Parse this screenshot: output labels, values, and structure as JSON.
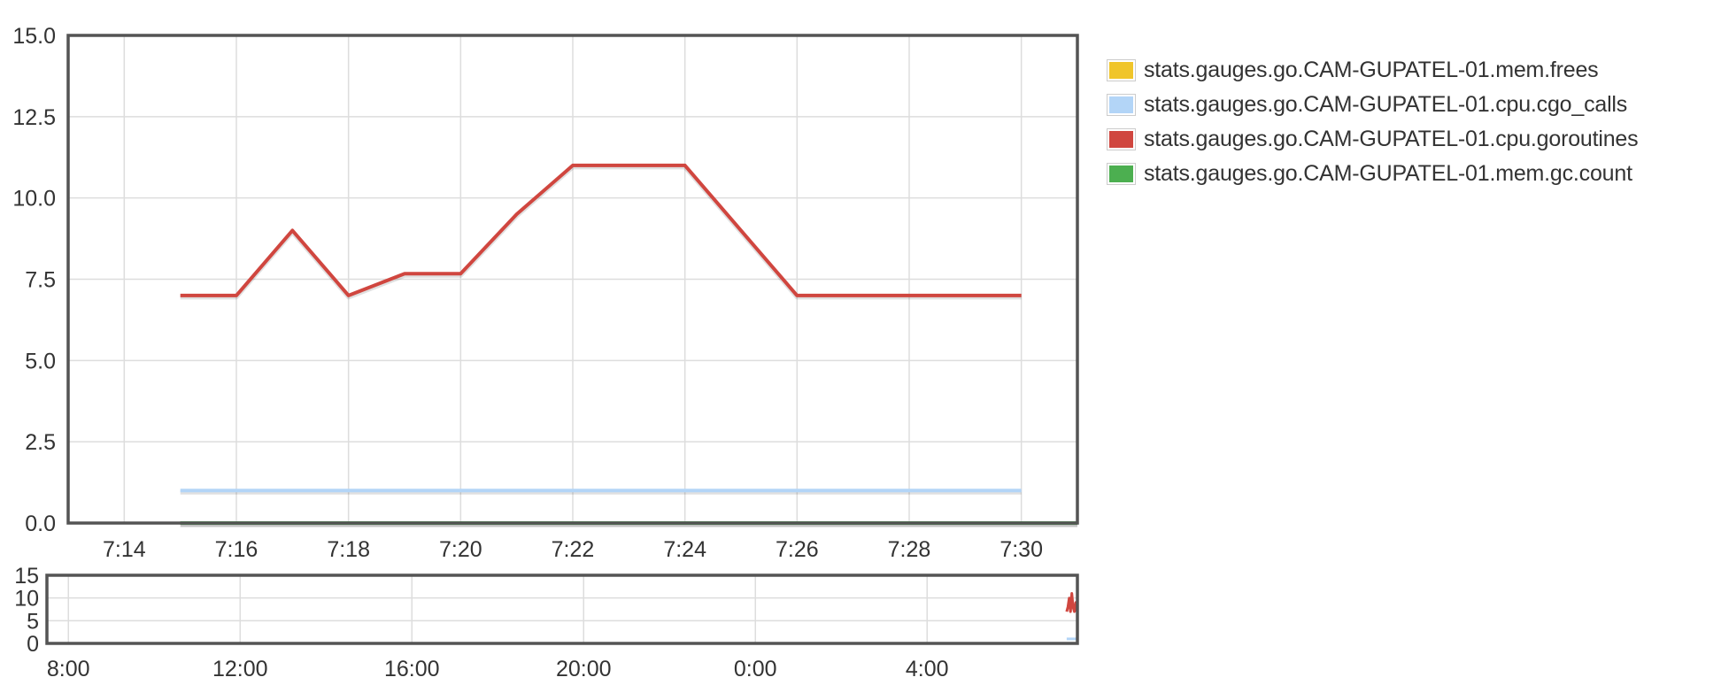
{
  "chart_data": [
    {
      "type": "line",
      "title": "",
      "xlabel": "",
      "ylabel": "",
      "x_ticks": [
        "7:14",
        "7:16",
        "7:18",
        "7:20",
        "7:22",
        "7:24",
        "7:26",
        "7:28",
        "7:30"
      ],
      "x_tick_minutes": [
        14,
        16,
        18,
        20,
        22,
        24,
        26,
        28,
        30
      ],
      "xlim": [
        13.0,
        31.0
      ],
      "ylim": [
        0,
        15
      ],
      "y_ticks": [
        "0.0",
        "2.5",
        "5.0",
        "7.5",
        "10.0",
        "12.5",
        "15.0"
      ],
      "y_tick_values": [
        0,
        2.5,
        5,
        7.5,
        10,
        12.5,
        15
      ],
      "grid": true,
      "legend_position": "right",
      "series": [
        {
          "name": "stats.gauges.go.CAM-GUPATEL-01.mem.frees",
          "color": "#f0c52a",
          "x": [
            15,
            16,
            17,
            18,
            19,
            20,
            21,
            22,
            23,
            24,
            25,
            26,
            27,
            28,
            29,
            30,
            31
          ],
          "values": [
            0,
            0,
            0,
            0,
            0,
            0,
            0,
            0,
            0,
            0,
            0,
            0,
            0,
            0,
            0,
            0,
            0
          ]
        },
        {
          "name": "stats.gauges.go.CAM-GUPATEL-01.cpu.cgo_calls",
          "color": "#b3d5f7",
          "x": [
            15,
            16,
            17,
            18,
            19,
            20,
            21,
            22,
            23,
            24,
            25,
            26,
            27,
            28,
            29,
            30
          ],
          "values": [
            1,
            1,
            1,
            1,
            1,
            1,
            1,
            1,
            1,
            1,
            1,
            1,
            1,
            1,
            1,
            1
          ]
        },
        {
          "name": "stats.gauges.go.CAM-GUPATEL-01.cpu.goroutines",
          "color": "#d0463f",
          "x": [
            15,
            16,
            17,
            18,
            19,
            20,
            21,
            22,
            23,
            24,
            25,
            26,
            27,
            28,
            29,
            30
          ],
          "values": [
            7,
            7,
            9,
            7,
            7.67,
            7.67,
            9.5,
            11,
            11,
            11,
            9,
            7,
            7,
            7,
            7,
            7
          ]
        },
        {
          "name": "stats.gauges.go.CAM-GUPATEL-01.mem.gc.count",
          "color": "#4caf50",
          "x": [
            15,
            16,
            17,
            18,
            19,
            20,
            21,
            22,
            23,
            24,
            25,
            26,
            27,
            28,
            29,
            30,
            31
          ],
          "values": [
            0,
            0,
            0,
            0,
            0,
            0,
            0,
            0,
            0,
            0,
            0,
            0,
            0,
            0,
            0,
            0,
            0
          ]
        }
      ]
    },
    {
      "type": "line",
      "title": "",
      "xlabel": "",
      "ylabel": "",
      "x_ticks": [
        "8:00",
        "12:00",
        "16:00",
        "20:00",
        "0:00",
        "4:00"
      ],
      "x_tick_hours": [
        8,
        12,
        16,
        20,
        24,
        28
      ],
      "xlim": [
        7.5,
        31.5
      ],
      "ylim": [
        0,
        15
      ],
      "y_ticks": [
        "0",
        "5",
        "10",
        "15"
      ],
      "y_tick_values": [
        0,
        5,
        10,
        15
      ],
      "grid": true,
      "series": [
        {
          "name": "stats.gauges.go.CAM-GUPATEL-01.cpu.goroutines",
          "color": "#d0463f",
          "x": [
            31.25,
            31.28,
            31.31,
            31.34,
            31.37,
            31.4,
            31.43,
            31.46,
            31.49
          ],
          "values": [
            7,
            8,
            10,
            7,
            11,
            8,
            7,
            9,
            7
          ]
        },
        {
          "name": "stats.gauges.go.CAM-GUPATEL-01.cpu.cgo_calls",
          "color": "#b3d5f7",
          "x": [
            31.25,
            31.5
          ],
          "values": [
            1,
            1
          ]
        },
        {
          "name": "stats.gauges.go.CAM-GUPATEL-01.mem.gc.count",
          "color": "#4caf50",
          "x": [
            31.25,
            31.5
          ],
          "values": [
            0,
            0
          ]
        }
      ]
    }
  ]
}
